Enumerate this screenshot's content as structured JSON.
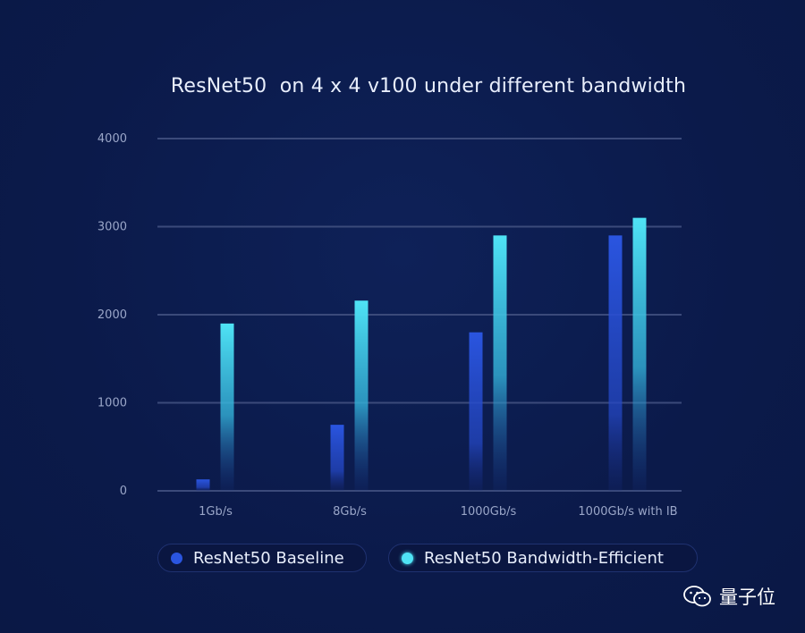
{
  "chart_data": {
    "type": "bar",
    "title": "ResNet50  on 4 x 4 v100 under different bandwidth",
    "categories": [
      "1Gb/s",
      "8Gb/s",
      "1000Gb/s",
      "1000Gb/s with IB"
    ],
    "series": [
      {
        "name": "ResNet50 Baseline",
        "color": "#2a55e0",
        "values": [
          130,
          750,
          1800,
          2900
        ]
      },
      {
        "name": "ResNet50 Bandwidth-Efficient",
        "color": "#4fe3f5",
        "values": [
          1900,
          2160,
          2900,
          3100
        ]
      }
    ],
    "yticks": [
      "0",
      "1000",
      "2000",
      "3000",
      "4000"
    ],
    "ylim": [
      0,
      4000
    ],
    "xlabel": "",
    "ylabel": "",
    "grid": true,
    "legend_position": "bottom"
  },
  "legend": {
    "baseline_label": "ResNet50 Baseline",
    "efficient_label": "ResNet50 Bandwidth-Efficient"
  },
  "watermark": {
    "text": "量子位",
    "icon": "wechat-icon"
  }
}
